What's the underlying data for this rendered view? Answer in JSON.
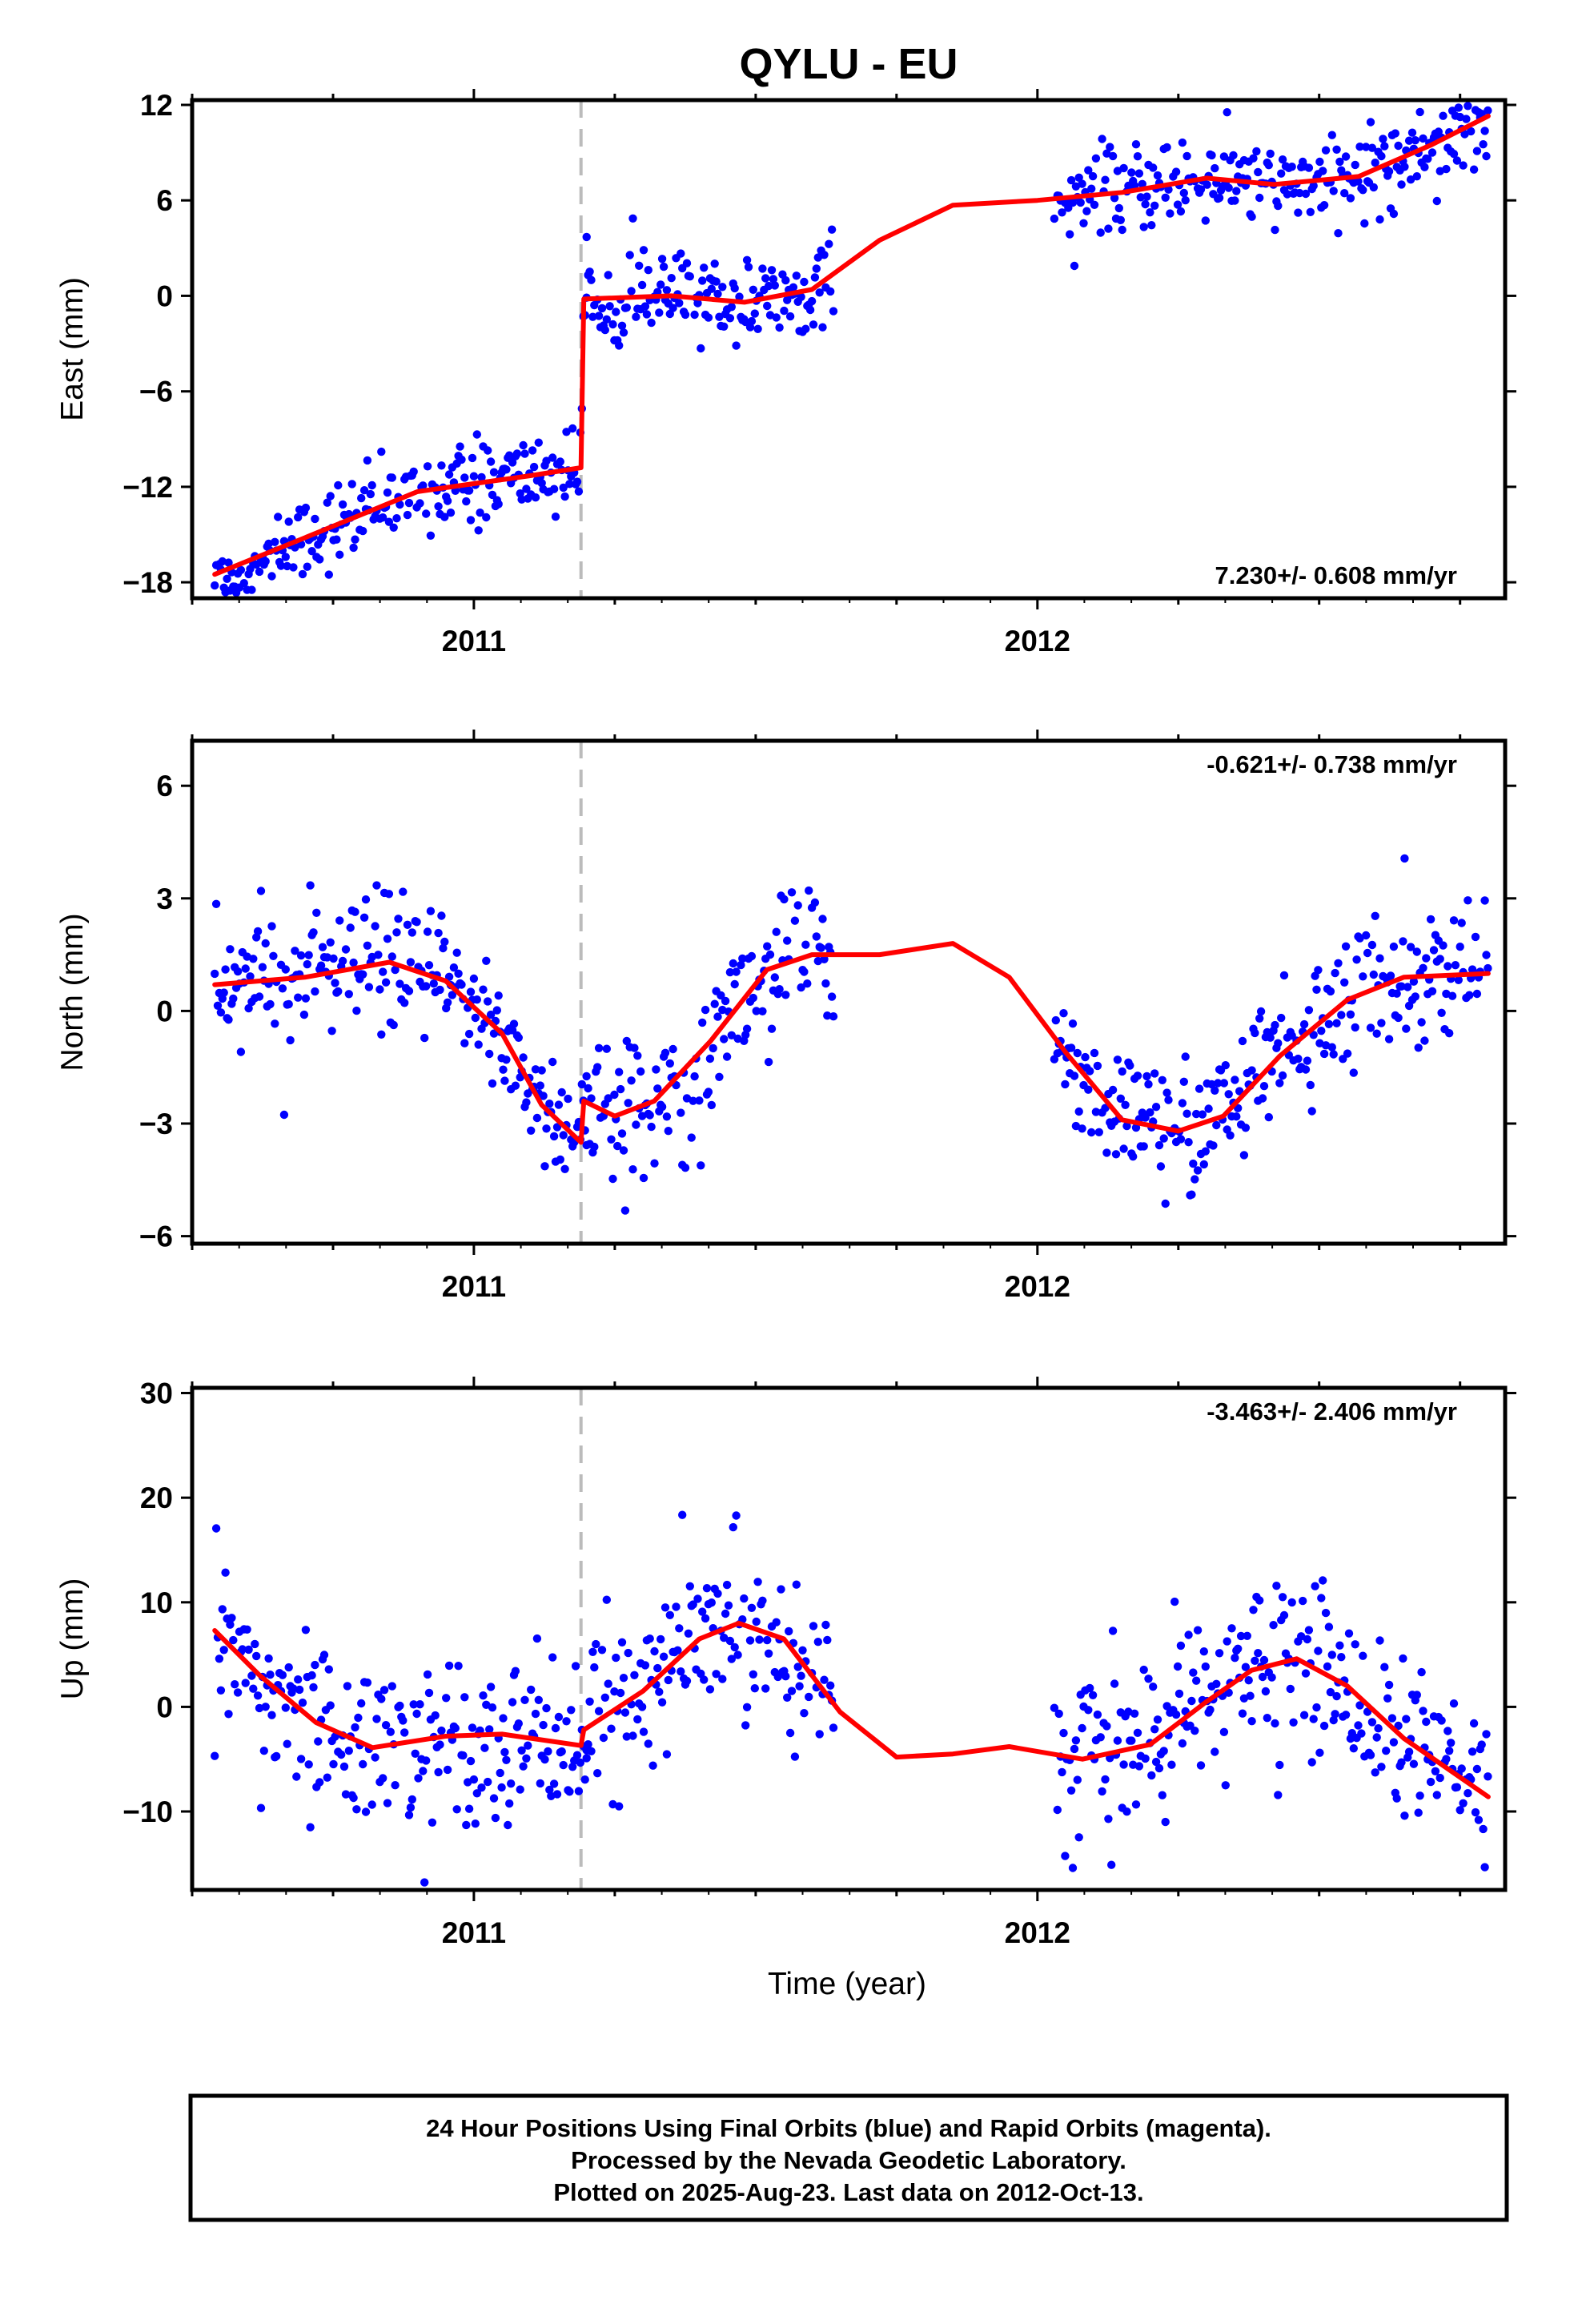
{
  "title": "QYLU - EU",
  "xlabel": "Time (year)",
  "year_ticks": [
    "2011",
    "2012"
  ],
  "footer": [
    "24 Hour Positions Using Final Orbits (blue) and Rapid Orbits (magenta).",
    "Processed by the Nevada Geodetic Laboratory.",
    "Plotted on 2025-Aug-23. Last data on 2012-Oct-13."
  ],
  "colors": {
    "final_orbits": "#0000ff",
    "model_fit": "#ff0000",
    "offset_line": "#bbbbbb",
    "frame": "#000000"
  },
  "chart_data": [
    {
      "type": "scatter",
      "ylabel": "East (mm)",
      "rate_label": "7.230+/- 0.608 mm/yr",
      "xlim": [
        2010.5,
        2012.83
      ],
      "ylim": [
        -19,
        12.3
      ],
      "yticks": [
        -18,
        -12,
        -6,
        0,
        6,
        12
      ],
      "offset_epoch": 2011.19,
      "data_segments": [
        [
          2010.54,
          2011.2
        ],
        [
          2011.2,
          2011.64
        ],
        [
          2012.03,
          2012.8
        ]
      ],
      "model": [
        [
          2010.54,
          -17.5
        ],
        [
          2010.7,
          -15.2
        ],
        [
          2010.9,
          -12.3
        ],
        [
          2011.1,
          -11.3
        ],
        [
          2011.19,
          -10.8
        ],
        [
          2011.195,
          -0.2
        ],
        [
          2011.35,
          0.0
        ],
        [
          2011.48,
          -0.4
        ],
        [
          2011.6,
          0.4
        ],
        [
          2011.72,
          3.5
        ],
        [
          2011.85,
          5.7
        ],
        [
          2012.0,
          6.0
        ],
        [
          2012.15,
          6.5
        ],
        [
          2012.3,
          7.4
        ],
        [
          2012.42,
          7.0
        ],
        [
          2012.57,
          7.5
        ],
        [
          2012.7,
          9.5
        ],
        [
          2012.8,
          11.3
        ]
      ],
      "noise_sd": 1.3
    },
    {
      "type": "scatter",
      "ylabel": "North (mm)",
      "rate_label": "-0.621+/- 0.738 mm/yr",
      "xlim": [
        2010.5,
        2012.83
      ],
      "ylim": [
        -6.2,
        7.2
      ],
      "yticks": [
        -6,
        -3,
        0,
        3,
        6
      ],
      "offset_epoch": 2011.19,
      "data_segments": [
        [
          2010.54,
          2011.2
        ],
        [
          2011.2,
          2011.64
        ],
        [
          2012.03,
          2012.8
        ]
      ],
      "model": [
        [
          2010.54,
          0.7
        ],
        [
          2010.7,
          0.9
        ],
        [
          2010.85,
          1.3
        ],
        [
          2010.95,
          0.8
        ],
        [
          2011.05,
          -0.6
        ],
        [
          2011.12,
          -2.5
        ],
        [
          2011.19,
          -3.5
        ],
        [
          2011.195,
          -2.4
        ],
        [
          2011.25,
          -2.8
        ],
        [
          2011.32,
          -2.4
        ],
        [
          2011.42,
          -0.8
        ],
        [
          2011.52,
          1.1
        ],
        [
          2011.6,
          1.5
        ],
        [
          2011.72,
          1.5
        ],
        [
          2011.85,
          1.8
        ],
        [
          2011.95,
          0.9
        ],
        [
          2012.05,
          -1.1
        ],
        [
          2012.15,
          -2.9
        ],
        [
          2012.25,
          -3.2
        ],
        [
          2012.33,
          -2.8
        ],
        [
          2012.43,
          -1.2
        ],
        [
          2012.55,
          0.3
        ],
        [
          2012.65,
          0.9
        ],
        [
          2012.8,
          1.0
        ]
      ],
      "noise_sd": 0.9
    },
    {
      "type": "scatter",
      "ylabel": "Up (mm)",
      "rate_label": "-3.463+/- 2.406 mm/yr",
      "xlim": [
        2010.5,
        2012.83
      ],
      "ylim": [
        -17.5,
        30.5
      ],
      "yticks": [
        -10,
        0,
        10,
        20,
        30
      ],
      "offset_epoch": 2011.19,
      "data_segments": [
        [
          2010.54,
          2011.2
        ],
        [
          2011.2,
          2011.64
        ],
        [
          2012.03,
          2012.8
        ]
      ],
      "model": [
        [
          2010.54,
          7.3
        ],
        [
          2010.62,
          3.0
        ],
        [
          2010.72,
          -1.5
        ],
        [
          2010.82,
          -3.9
        ],
        [
          2010.95,
          -2.8
        ],
        [
          2011.05,
          -2.6
        ],
        [
          2011.19,
          -3.7
        ],
        [
          2011.195,
          -2.2
        ],
        [
          2011.3,
          1.5
        ],
        [
          2011.4,
          6.5
        ],
        [
          2011.47,
          8.0
        ],
        [
          2011.55,
          6.5
        ],
        [
          2011.65,
          -0.5
        ],
        [
          2011.75,
          -4.8
        ],
        [
          2011.85,
          -4.5
        ],
        [
          2011.95,
          -3.8
        ],
        [
          2012.08,
          -5.0
        ],
        [
          2012.2,
          -3.6
        ],
        [
          2012.3,
          0.5
        ],
        [
          2012.38,
          3.5
        ],
        [
          2012.46,
          4.6
        ],
        [
          2012.55,
          2.0
        ],
        [
          2012.65,
          -3.0
        ],
        [
          2012.8,
          -8.6
        ]
      ],
      "noise_sd": 4.0
    }
  ]
}
